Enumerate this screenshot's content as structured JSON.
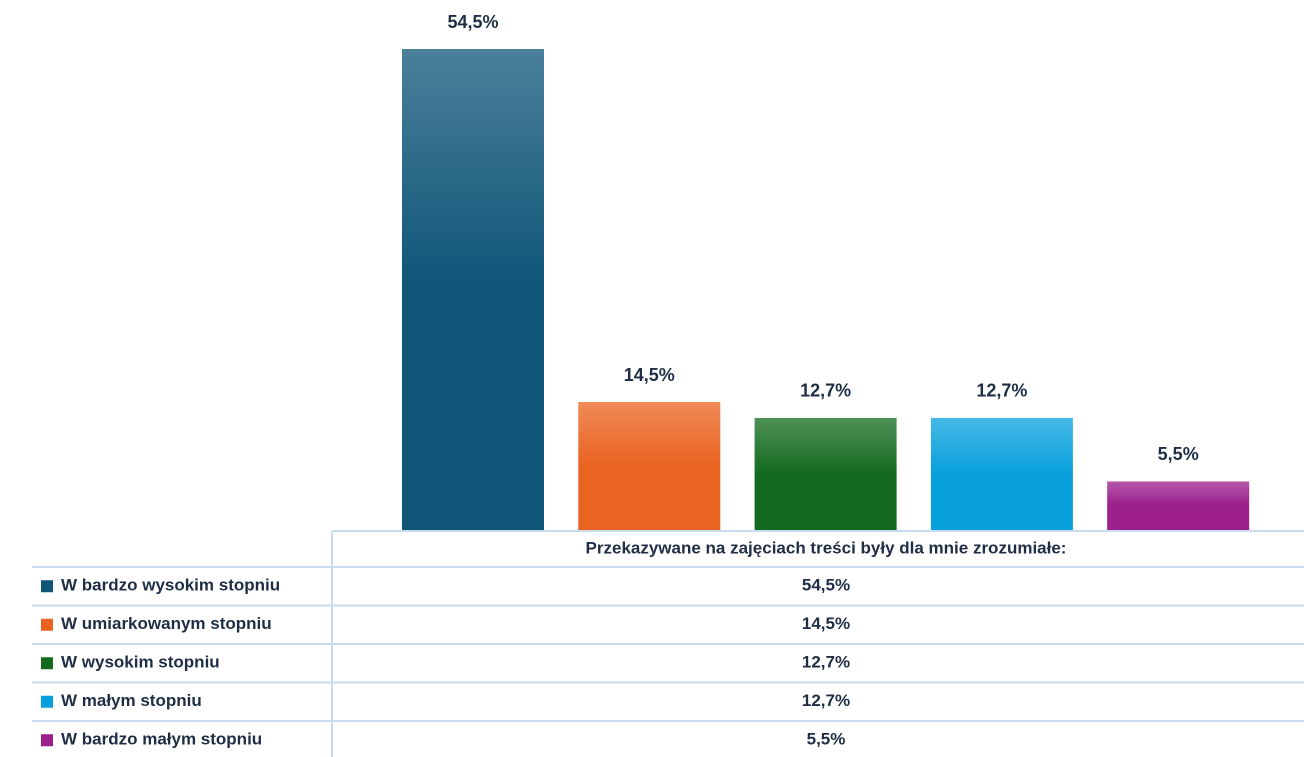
{
  "chart_data": {
    "type": "bar",
    "categories": [
      "Przekazywane na zajęciach treści były dla mnie zrozumiałe:"
    ],
    "series": [
      {
        "name": "W bardzo wysokim stopniu",
        "color": "#0e5578",
        "values": [
          54.5
        ],
        "value_labels": [
          "54,5%"
        ]
      },
      {
        "name": "W umiarkowanym stopniu",
        "color": "#ea6320",
        "values": [
          14.5
        ],
        "value_labels": [
          "14,5%"
        ]
      },
      {
        "name": "W wysokim stopniu",
        "color": "#146b1f",
        "values": [
          12.7
        ],
        "value_labels": [
          "12,7%"
        ]
      },
      {
        "name": "W małym stopniu",
        "color": "#08a0dc",
        "values": [
          12.7
        ],
        "value_labels": [
          "12,7%"
        ]
      },
      {
        "name": "W bardzo małym stopniu",
        "color": "#9c1f8c",
        "values": [
          5.5
        ],
        "value_labels": [
          "5,5%"
        ]
      }
    ]
  }
}
